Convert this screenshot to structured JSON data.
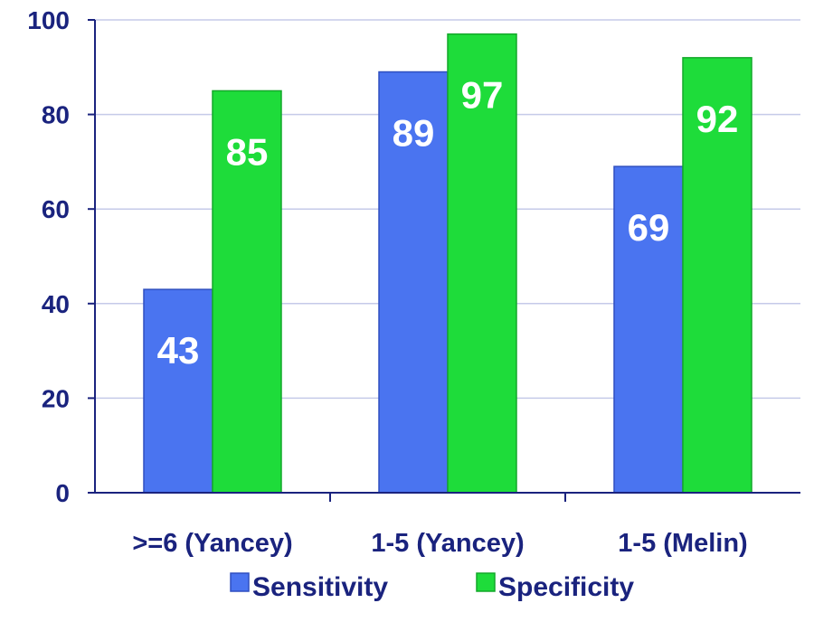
{
  "chart_data": {
    "type": "bar",
    "categories": [
      ">=6 (Yancey)",
      "1-5 (Yancey)",
      "1-5 (Melin)"
    ],
    "series": [
      {
        "name": "Sensitivity",
        "values": [
          43,
          89,
          69
        ],
        "color": "#4a74f0",
        "labels": [
          "43",
          "89",
          "69"
        ]
      },
      {
        "name": "Specificity",
        "values": [
          85,
          97,
          92
        ],
        "color": "#1edc3a",
        "labels": [
          "85",
          "97",
          "92"
        ]
      }
    ],
    "ylim": [
      0,
      100
    ],
    "yticks": [
      "0",
      "20",
      "40",
      "60",
      "80",
      "100"
    ],
    "grid": true,
    "legend": "bottom",
    "colors": {
      "axis": "#1a237e",
      "grid": "#c5cae9",
      "text": "#1a237e",
      "data_label": "#ffffff"
    }
  }
}
